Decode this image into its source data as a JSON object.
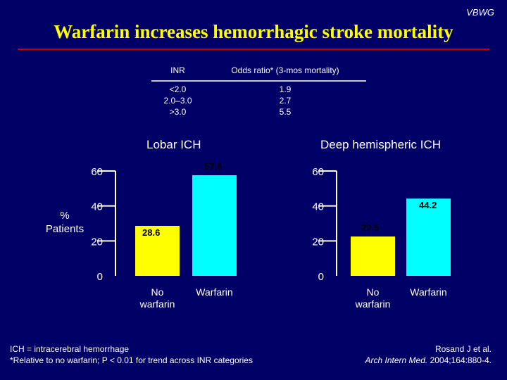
{
  "header": {
    "brand": "VBWG",
    "title": "Warfarin increases hemorrhagic stroke mortality"
  },
  "inr_table": {
    "headers": [
      "INR",
      "Odds ratio* (3-mos mortality)"
    ],
    "rows": [
      [
        "<2.0",
        "1.9"
      ],
      [
        "2.0–3.0",
        "2.7"
      ],
      [
        ">3.0",
        "5.5"
      ]
    ]
  },
  "y_axis_label": [
    "%",
    "Patients"
  ],
  "colors": {
    "background": "#000066",
    "no_warfarin": "#ffff00",
    "warfarin": "#00ffff",
    "title": "#ffff00",
    "rule": "#c00000"
  },
  "chart_data": [
    {
      "type": "bar",
      "title": "Lobar ICH",
      "categories": [
        [
          "No",
          "warfarin"
        ],
        [
          "Warfarin"
        ]
      ],
      "values": [
        28.6,
        57.6
      ],
      "ylim": [
        0,
        60
      ],
      "yticks": [
        0,
        20,
        40,
        60
      ],
      "ylabel": "% Patients",
      "data_labels": [
        "28.6",
        "57.6"
      ],
      "grid": false
    },
    {
      "type": "bar",
      "title": "Deep hemispheric ICH",
      "categories": [
        [
          "No",
          "warfarin"
        ],
        [
          "Warfarin"
        ]
      ],
      "values": [
        22.5,
        44.2
      ],
      "ylim": [
        0,
        60
      ],
      "yticks": [
        0,
        20,
        40,
        60
      ],
      "data_labels": [
        "22.5",
        "44.2"
      ],
      "grid": false
    }
  ],
  "footnotes": {
    "left": [
      "ICH = intracerebral hemorrhage",
      "*Relative to no warfarin; P < 0.01 for trend across INR categories"
    ],
    "right_line1": "Rosand J et al.",
    "right_journal": "Arch Intern Med.",
    "right_citation": " 2004;164:880-4."
  }
}
